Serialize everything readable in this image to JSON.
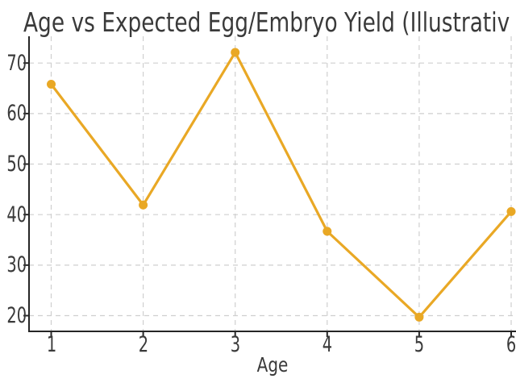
{
  "figure": {
    "background_color": "#ffffff",
    "text_color": "#3a3a3a",
    "axis_color": "#262626",
    "grid_color": "#cfcfcf"
  },
  "chart_data": {
    "type": "line",
    "title": "Age vs Expected Egg/Embryo Yield (Illustrativ",
    "xlabel": "Age",
    "ylabel": "",
    "x": [
      1,
      2,
      3,
      4,
      5,
      6
    ],
    "series": [
      {
        "name": "Expected Egg/Embryo Yield",
        "values": [
          65.8,
          41.9,
          72.1,
          36.7,
          19.7,
          40.6
        ],
        "color": "#E9A825",
        "marker": "circle",
        "line_width": 3.2,
        "marker_radius": 5.5
      }
    ],
    "xticks": [
      1,
      2,
      3,
      4,
      5,
      6
    ],
    "yticks": [
      20,
      30,
      40,
      50,
      60,
      70
    ],
    "xlim": [
      0.76,
      6.05
    ],
    "ylim": [
      16.9,
      75.3
    ],
    "grid": true,
    "grid_style": "dashed",
    "legend_position": "none",
    "note_clipping": "figure cropped at top and right edges"
  }
}
